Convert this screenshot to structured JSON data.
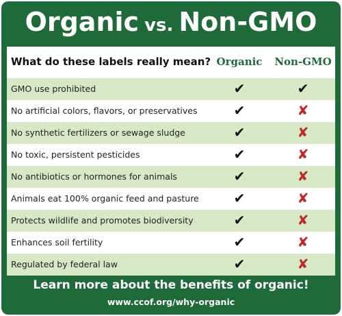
{
  "title": {
    "left": "Organic",
    "middle": "vs.",
    "right": "Non-GMO"
  },
  "table": {
    "question": "What do these labels really mean?",
    "columns": [
      "Organic",
      "Non-GMO"
    ],
    "rows": [
      [
        "GMO use prohibited",
        "✔",
        "✔"
      ],
      [
        "No artificial colors, flavors, or preservatives",
        "✔",
        "✘"
      ],
      [
        "No synthetic fertilizers or sewage sludge",
        "✔",
        "✘"
      ],
      [
        "No toxic, persistent pesticides",
        "✔",
        "✘"
      ],
      [
        "No antibiotics or hormones for animals",
        "✔",
        "✘"
      ],
      [
        "Animals eat 100% organic feed and pasture",
        "✔",
        "✘"
      ],
      [
        "Protects wildlife and promotes biodiversity",
        "✔",
        "✘"
      ],
      [
        "Enhances soil fertility",
        "✔",
        "✘"
      ],
      [
        "Regulated by federal law",
        "✔",
        "✘"
      ]
    ]
  },
  "footer": {
    "headline": "Learn more about the benefits of organic!",
    "url": "www.ccof.org/why-organic"
  }
}
